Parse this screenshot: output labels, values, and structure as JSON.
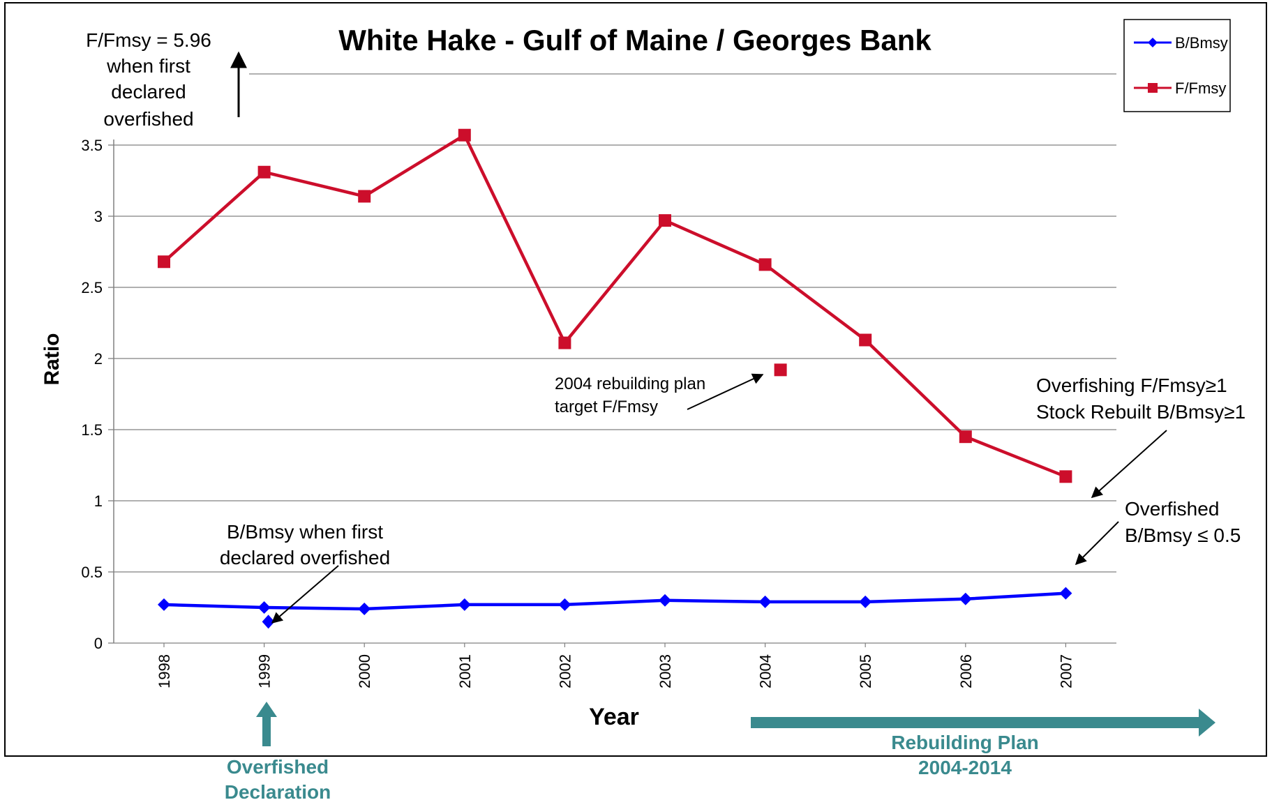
{
  "chart_data": {
    "type": "line",
    "title": "White Hake - Gulf of Maine / Georges Bank",
    "xlabel": "Year",
    "ylabel": "Ratio",
    "ylim": [
      0,
      3.5
    ],
    "yticks": [
      "0",
      "0.5",
      "1",
      "1.5",
      "2",
      "2.5",
      "3",
      "3.5"
    ],
    "categories": [
      "1998",
      "1999",
      "2000",
      "2001",
      "2002",
      "2003",
      "2004",
      "2005",
      "2006",
      "2007"
    ],
    "grid": true,
    "legend": "top-right",
    "series": [
      {
        "name": "B/Bmsy",
        "color": "#0000ff",
        "marker": "diamond",
        "values": [
          0.27,
          0.25,
          0.24,
          0.27,
          0.27,
          0.3,
          0.29,
          0.29,
          0.31,
          0.35
        ]
      },
      {
        "name": "F/Fmsy",
        "color": "#cc0e2b",
        "marker": "square",
        "values": [
          2.68,
          3.31,
          3.14,
          3.57,
          2.11,
          2.97,
          2.66,
          2.13,
          1.45,
          1.17
        ]
      }
    ],
    "extra_points": [
      {
        "series": "F/Fmsy",
        "x": "2004",
        "y": 1.92,
        "label": "2004 rebuilding plan target F/Fmsy"
      },
      {
        "series": "B/Bmsy",
        "x": "1999",
        "y": 0.15,
        "label": "B/Bmsy when first declared overfished"
      }
    ],
    "reference_lines": [
      {
        "label": "F/Fmsy = 5.96 when first declared overfished"
      }
    ],
    "annotations": {
      "fmsy_first": [
        "F/Fmsy = 5.96",
        "when first",
        "declared",
        "overfished"
      ],
      "target": [
        "2004 rebuilding plan",
        "target F/Fmsy"
      ],
      "bmsy_first": [
        "B/Bmsy when first",
        "declared overfished"
      ],
      "overfishing": [
        "Overfishing F/Fmsy≥1",
        "Stock Rebuilt B/Bmsy≥1"
      ],
      "overfished": [
        "Overfished",
        "B/Bmsy ≤ 0.5"
      ],
      "declaration": [
        "Overfished",
        "Declaration"
      ],
      "rebuilding": [
        "Rebuilding Plan",
        "2004-2014"
      ]
    }
  },
  "colors": {
    "teal": "#3a8a8e",
    "blue": "#0000ff",
    "red": "#cc0e2b",
    "grid": "#808080"
  }
}
